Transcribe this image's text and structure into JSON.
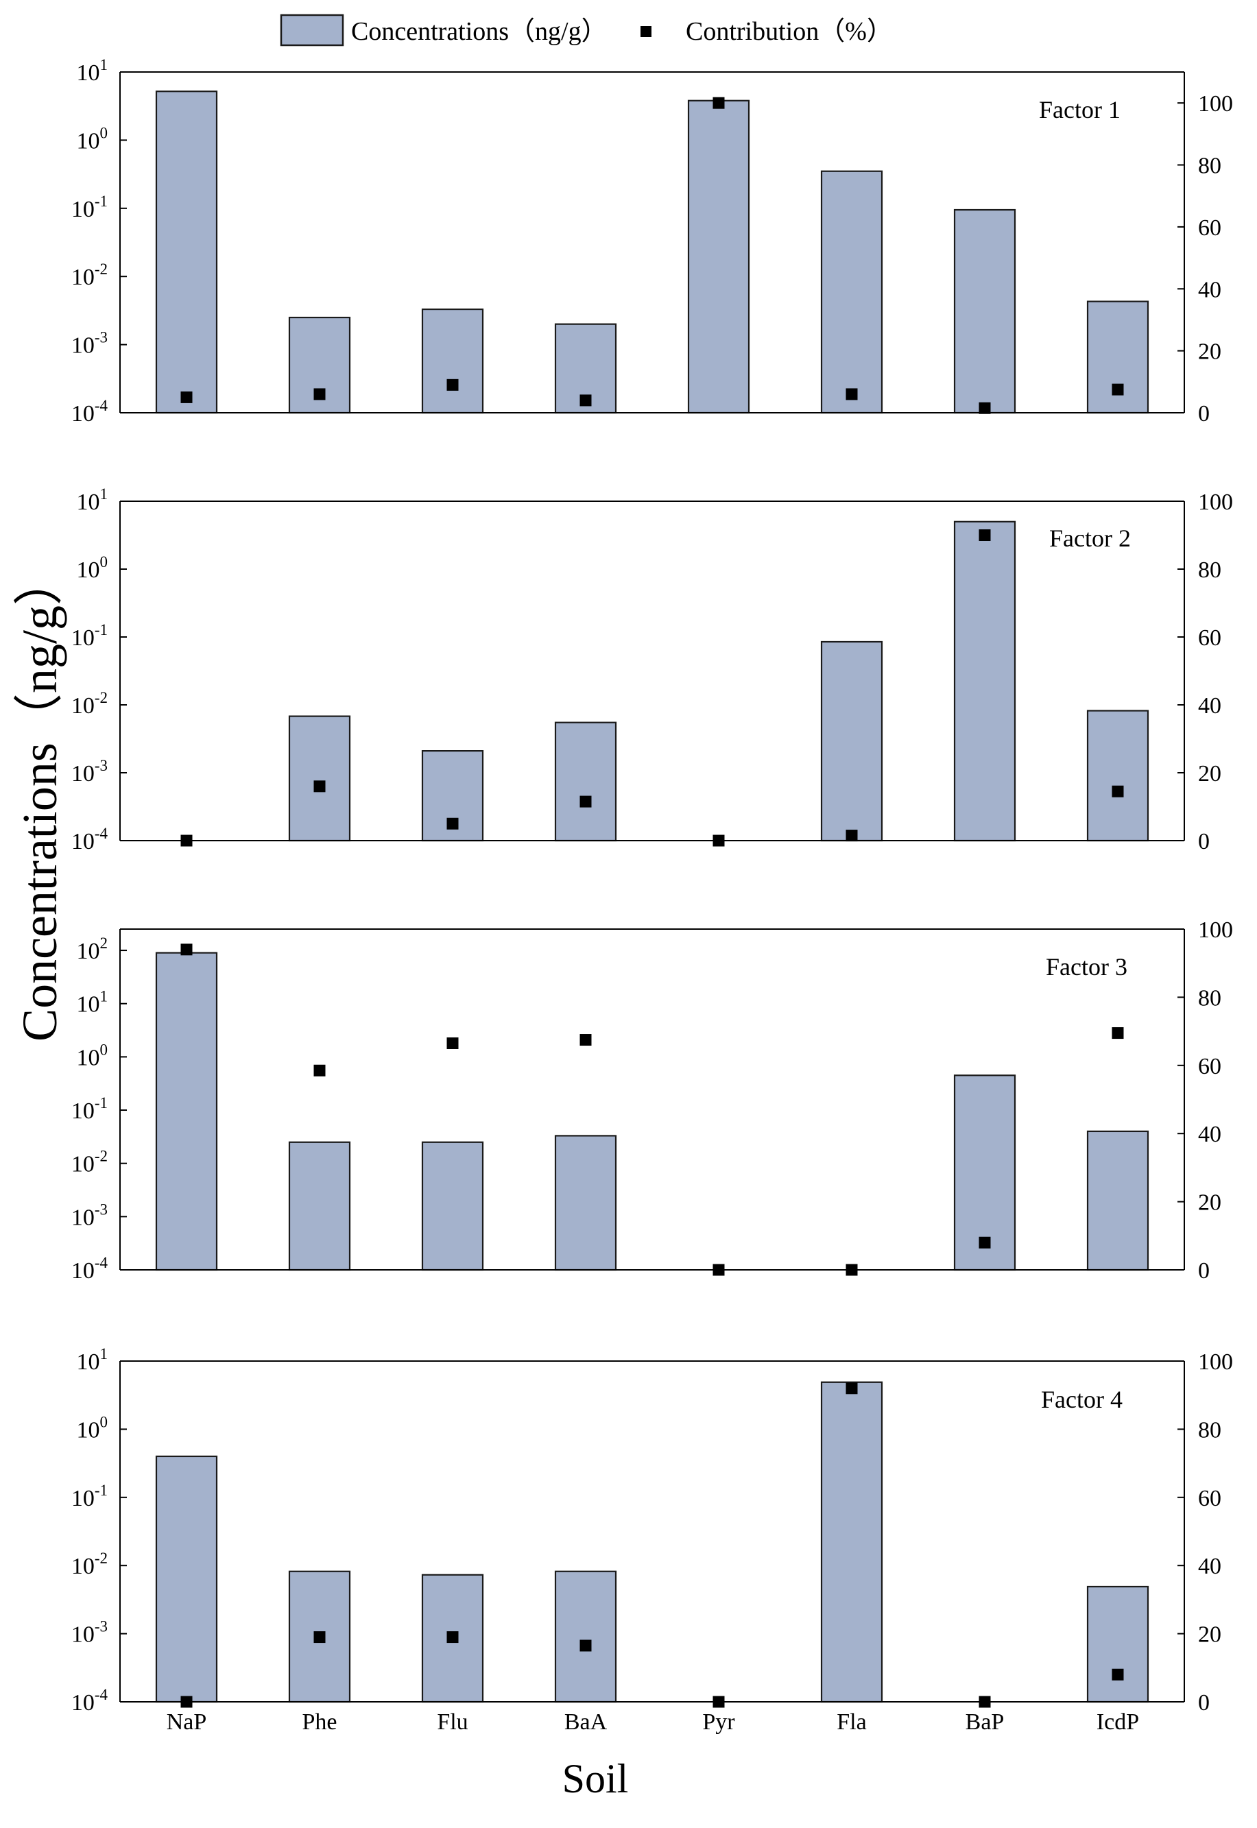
{
  "chart_data": {
    "type": "bar",
    "categories": [
      "NaP",
      "Phe",
      "Flu",
      "BaA",
      "Pyr",
      "Fla",
      "BaP",
      "IcdP"
    ],
    "xlabel": "Soil",
    "ylabel": "Concentrations（ng/g）",
    "legend": {
      "position": "top-center",
      "entries": [
        {
          "name": "Concentrations（ng/g）",
          "marker": "bar"
        },
        {
          "name": "Contribution（%）",
          "marker": "square"
        }
      ]
    },
    "colors": {
      "bar_fill": "#a4b2cc",
      "bar_stroke": "#1a1a1a",
      "marker": "#000000",
      "axis": "#000000"
    },
    "left_axis_scale": "log",
    "right_axis_scale": "linear",
    "panels": [
      {
        "label": "Factor 1",
        "left_ticks": [
          {
            "base": "10",
            "exp": "1"
          },
          {
            "base": "10",
            "exp": "0"
          },
          {
            "base": "10",
            "exp": "-1"
          },
          {
            "base": "10",
            "exp": "-2"
          },
          {
            "base": "10",
            "exp": "-3"
          },
          {
            "base": "10",
            "exp": "-4"
          }
        ],
        "left_exp_range": [
          -4,
          1
        ],
        "right_ticks": [
          "0",
          "20",
          "40",
          "60",
          "80",
          "100"
        ],
        "right_range": [
          0,
          110
        ],
        "series": [
          {
            "name": "Concentrations（ng/g）",
            "values": [
              5.2,
              0.0025,
              0.0033,
              0.002,
              3.8,
              0.35,
              0.095,
              0.0043
            ]
          },
          {
            "name": "Contribution（%）",
            "values": [
              5,
              6,
              9,
              4,
              100,
              6,
              1.5,
              7.5
            ]
          }
        ]
      },
      {
        "label": "Factor  2",
        "left_ticks": [
          {
            "base": "10",
            "exp": "1"
          },
          {
            "base": "10",
            "exp": "0"
          },
          {
            "base": "10",
            "exp": "-1"
          },
          {
            "base": "10",
            "exp": "-2"
          },
          {
            "base": "10",
            "exp": "-3"
          },
          {
            "base": "10",
            "exp": "-4"
          }
        ],
        "left_exp_range": [
          -4,
          1
        ],
        "right_ticks": [
          "0",
          "20",
          "40",
          "60",
          "80",
          "100"
        ],
        "right_range": [
          0,
          100
        ],
        "series": [
          {
            "name": "Concentrations（ng/g）",
            "values": [
              0,
              0.0068,
              0.0021,
              0.0055,
              0,
              0.085,
              5.0,
              0.0082
            ]
          },
          {
            "name": "Contribution（%）",
            "values": [
              0,
              16,
              5,
              11.5,
              0,
              1.5,
              90,
              14.5
            ]
          }
        ]
      },
      {
        "label": "Factor 3",
        "left_ticks": [
          {
            "base": "10",
            "exp": "2"
          },
          {
            "base": "10",
            "exp": "1"
          },
          {
            "base": "10",
            "exp": "0"
          },
          {
            "base": "10",
            "exp": "-1"
          },
          {
            "base": "10",
            "exp": "-2"
          },
          {
            "base": "10",
            "exp": "-3"
          },
          {
            "base": "10",
            "exp": "-4"
          }
        ],
        "left_exp_range": [
          -4,
          2.4
        ],
        "right_ticks": [
          "0",
          "20",
          "40",
          "60",
          "80",
          "100"
        ],
        "right_range": [
          0,
          100
        ],
        "series": [
          {
            "name": "Concentrations（ng/g）",
            "values": [
              90,
              0.025,
              0.025,
              0.033,
              0,
              0,
              0.45,
              0.04
            ]
          },
          {
            "name": "Contribution（%）",
            "values": [
              94,
              58.5,
              66.5,
              67.5,
              0,
              0,
              8,
              69.5
            ]
          }
        ]
      },
      {
        "label": "Factor  4",
        "left_ticks": [
          {
            "base": "10",
            "exp": "1"
          },
          {
            "base": "10",
            "exp": "0"
          },
          {
            "base": "10",
            "exp": "-1"
          },
          {
            "base": "10",
            "exp": "-2"
          },
          {
            "base": "10",
            "exp": "-3"
          },
          {
            "base": "10",
            "exp": "-4"
          }
        ],
        "left_exp_range": [
          -4,
          1
        ],
        "right_ticks": [
          "0",
          "20",
          "40",
          "60",
          "80",
          "100"
        ],
        "right_range": [
          0,
          100
        ],
        "series": [
          {
            "name": "Concentrations（ng/g）",
            "values": [
              0.4,
              0.0082,
              0.0073,
              0.0082,
              0,
              4.9,
              0,
              0.0049
            ]
          },
          {
            "name": "Contribution（%）",
            "values": [
              0,
              19,
              19,
              16.5,
              0,
              92,
              0,
              8
            ]
          }
        ]
      }
    ]
  }
}
